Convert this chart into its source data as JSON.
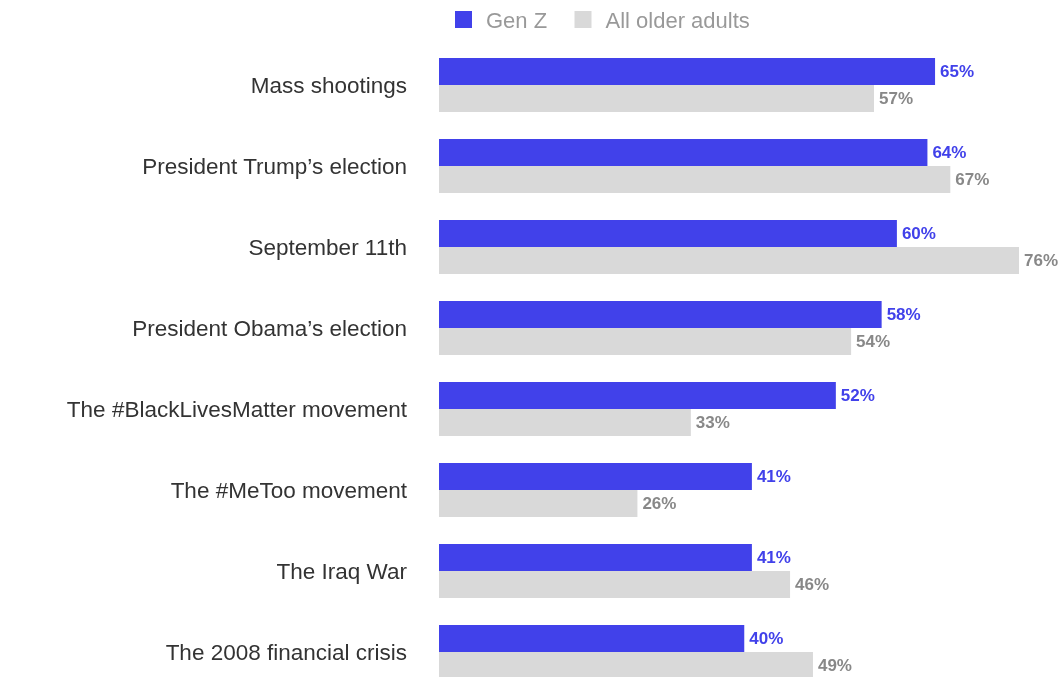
{
  "chart_data": {
    "type": "bar",
    "orientation": "horizontal",
    "categories": [
      "Mass shootings",
      "President Trump’s election",
      "September 11th",
      "President Obama’s election",
      "The #BlackLivesMatter movement",
      "The #MeToo movement",
      "The Iraq War",
      "The 2008 financial crisis"
    ],
    "series": [
      {
        "name": "Gen Z",
        "color": "#4141ea",
        "values": [
          65,
          64,
          60,
          58,
          52,
          41,
          41,
          40
        ],
        "value_labels": [
          "65%",
          "64%",
          "60%",
          "58%",
          "52%",
          "41%",
          "41%",
          "40%"
        ]
      },
      {
        "name": "All older adults",
        "color": "#d9d9d9",
        "values": [
          57,
          67,
          76,
          54,
          33,
          26,
          46,
          49
        ],
        "value_labels": [
          "57%",
          "67%",
          "76%",
          "54%",
          "33%",
          "26%",
          "46%",
          "49%"
        ]
      }
    ],
    "legend": "top"
  }
}
